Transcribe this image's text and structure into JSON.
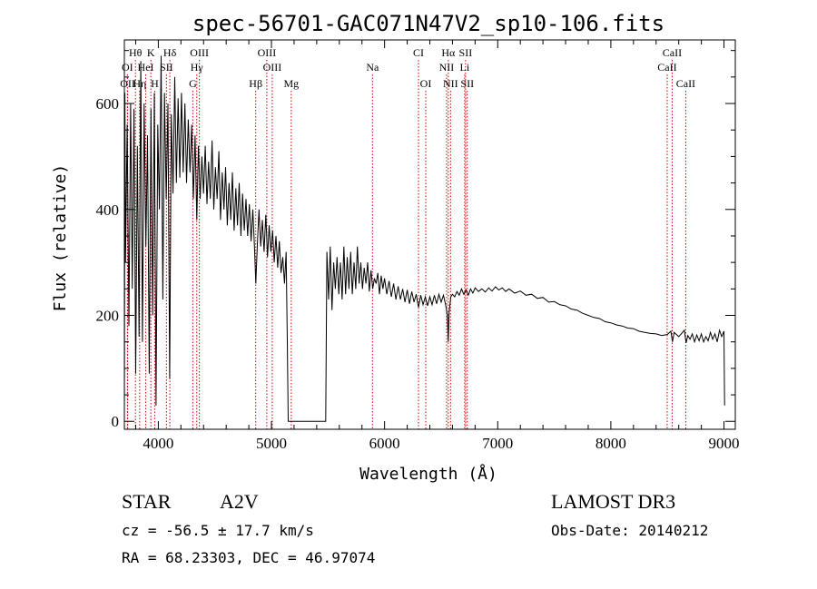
{
  "chart_data": {
    "type": "line",
    "title": "spec-56701-GAC071N47V2_sp10-106.fits",
    "xlabel": "Wavelength (Å)",
    "ylabel": "Flux (relative)",
    "xlim": [
      3700,
      9100
    ],
    "ylim": [
      -15,
      720
    ],
    "x_ticks": [
      4000,
      5000,
      6000,
      7000,
      8000,
      9000
    ],
    "y_ticks": [
      0,
      200,
      400,
      600
    ],
    "grid": false,
    "series": [
      {
        "name": "flux",
        "points": [
          [
            3700,
            0
          ],
          [
            3705,
            620
          ],
          [
            3710,
            300
          ],
          [
            3725,
            560
          ],
          [
            3740,
            180
          ],
          [
            3755,
            600
          ],
          [
            3770,
            250
          ],
          [
            3785,
            590
          ],
          [
            3800,
            90
          ],
          [
            3815,
            520
          ],
          [
            3830,
            160
          ],
          [
            3845,
            680
          ],
          [
            3860,
            150
          ],
          [
            3875,
            600
          ],
          [
            3890,
            330
          ],
          [
            3905,
            540
          ],
          [
            3920,
            90
          ],
          [
            3935,
            590
          ],
          [
            3950,
            200
          ],
          [
            3965,
            620
          ],
          [
            3980,
            30
          ],
          [
            3995,
            560
          ],
          [
            4010,
            400
          ],
          [
            4025,
            690
          ],
          [
            4040,
            230
          ],
          [
            4055,
            620
          ],
          [
            4070,
            420
          ],
          [
            4085,
            600
          ],
          [
            4100,
            80
          ],
          [
            4115,
            580
          ],
          [
            4130,
            430
          ],
          [
            4145,
            650
          ],
          [
            4160,
            450
          ],
          [
            4175,
            610
          ],
          [
            4190,
            460
          ],
          [
            4205,
            620
          ],
          [
            4220,
            470
          ],
          [
            4235,
            600
          ],
          [
            4250,
            450
          ],
          [
            4265,
            570
          ],
          [
            4280,
            470
          ],
          [
            4295,
            560
          ],
          [
            4310,
            420
          ],
          [
            4325,
            540
          ],
          [
            4340,
            380
          ],
          [
            4355,
            520
          ],
          [
            4370,
            420
          ],
          [
            4385,
            500
          ],
          [
            4400,
            430
          ],
          [
            4415,
            520
          ],
          [
            4430,
            410
          ],
          [
            4445,
            490
          ],
          [
            4460,
            420
          ],
          [
            4475,
            530
          ],
          [
            4490,
            400
          ],
          [
            4505,
            480
          ],
          [
            4520,
            420
          ],
          [
            4535,
            510
          ],
          [
            4550,
            380
          ],
          [
            4565,
            470
          ],
          [
            4580,
            400
          ],
          [
            4595,
            480
          ],
          [
            4610,
            370
          ],
          [
            4625,
            450
          ],
          [
            4640,
            380
          ],
          [
            4655,
            470
          ],
          [
            4670,
            360
          ],
          [
            4685,
            440
          ],
          [
            4700,
            370
          ],
          [
            4715,
            450
          ],
          [
            4730,
            350
          ],
          [
            4745,
            430
          ],
          [
            4760,
            360
          ],
          [
            4775,
            420
          ],
          [
            4790,
            350
          ],
          [
            4805,
            410
          ],
          [
            4820,
            340
          ],
          [
            4835,
            400
          ],
          [
            4850,
            330
          ],
          [
            4862,
            260
          ],
          [
            4875,
            330
          ],
          [
            4890,
            400
          ],
          [
            4905,
            330
          ],
          [
            4920,
            380
          ],
          [
            4935,
            320
          ],
          [
            4950,
            390
          ],
          [
            4965,
            310
          ],
          [
            4980,
            370
          ],
          [
            4995,
            320
          ],
          [
            5010,
            360
          ],
          [
            5025,
            300
          ],
          [
            5040,
            350
          ],
          [
            5055,
            290
          ],
          [
            5070,
            340
          ],
          [
            5085,
            280
          ],
          [
            5100,
            310
          ],
          [
            5115,
            260
          ],
          [
            5130,
            320
          ],
          [
            5140,
            150
          ],
          [
            5148,
            0
          ],
          [
            5480,
            0
          ],
          [
            5490,
            320
          ],
          [
            5505,
            230
          ],
          [
            5520,
            330
          ],
          [
            5535,
            210
          ],
          [
            5550,
            300
          ],
          [
            5565,
            250
          ],
          [
            5580,
            310
          ],
          [
            5595,
            240
          ],
          [
            5610,
            300
          ],
          [
            5625,
            230
          ],
          [
            5640,
            330
          ],
          [
            5655,
            240
          ],
          [
            5670,
            310
          ],
          [
            5685,
            250
          ],
          [
            5700,
            320
          ],
          [
            5715,
            240
          ],
          [
            5730,
            300
          ],
          [
            5745,
            250
          ],
          [
            5760,
            330
          ],
          [
            5775,
            260
          ],
          [
            5790,
            300
          ],
          [
            5805,
            250
          ],
          [
            5820,
            290
          ],
          [
            5835,
            260
          ],
          [
            5850,
            300
          ],
          [
            5865,
            245
          ],
          [
            5880,
            285
          ],
          [
            5895,
            250
          ],
          [
            5910,
            270
          ],
          [
            5925,
            260
          ],
          [
            5940,
            280
          ],
          [
            5955,
            240
          ],
          [
            5970,
            275
          ],
          [
            5985,
            250
          ],
          [
            6000,
            270
          ],
          [
            6020,
            240
          ],
          [
            6040,
            265
          ],
          [
            6060,
            235
          ],
          [
            6080,
            260
          ],
          [
            6100,
            230
          ],
          [
            6120,
            255
          ],
          [
            6140,
            230
          ],
          [
            6160,
            250
          ],
          [
            6180,
            225
          ],
          [
            6200,
            248
          ],
          [
            6220,
            222
          ],
          [
            6240,
            245
          ],
          [
            6260,
            225
          ],
          [
            6280,
            240
          ],
          [
            6300,
            215
          ],
          [
            6320,
            238
          ],
          [
            6340,
            220
          ],
          [
            6360,
            235
          ],
          [
            6380,
            218
          ],
          [
            6400,
            235
          ],
          [
            6420,
            220
          ],
          [
            6440,
            238
          ],
          [
            6460,
            222
          ],
          [
            6480,
            240
          ],
          [
            6500,
            225
          ],
          [
            6520,
            238
          ],
          [
            6540,
            220
          ],
          [
            6555,
            200
          ],
          [
            6563,
            150
          ],
          [
            6570,
            205
          ],
          [
            6585,
            235
          ],
          [
            6600,
            240
          ],
          [
            6620,
            235
          ],
          [
            6640,
            245
          ],
          [
            6660,
            238
          ],
          [
            6680,
            250
          ],
          [
            6700,
            240
          ],
          [
            6720,
            248
          ],
          [
            6740,
            238
          ],
          [
            6760,
            250
          ],
          [
            6780,
            242
          ],
          [
            6800,
            252
          ],
          [
            6830,
            245
          ],
          [
            6860,
            250
          ],
          [
            6890,
            244
          ],
          [
            6920,
            252
          ],
          [
            6950,
            246
          ],
          [
            6980,
            254
          ],
          [
            7010,
            248
          ],
          [
            7040,
            252
          ],
          [
            7070,
            245
          ],
          [
            7100,
            250
          ],
          [
            7150,
            242
          ],
          [
            7200,
            246
          ],
          [
            7250,
            238
          ],
          [
            7300,
            240
          ],
          [
            7350,
            232
          ],
          [
            7400,
            234
          ],
          [
            7450,
            225
          ],
          [
            7500,
            226
          ],
          [
            7550,
            220
          ],
          [
            7600,
            218
          ],
          [
            7650,
            212
          ],
          [
            7700,
            210
          ],
          [
            7750,
            204
          ],
          [
            7800,
            200
          ],
          [
            7850,
            196
          ],
          [
            7900,
            194
          ],
          [
            7950,
            188
          ],
          [
            8000,
            186
          ],
          [
            8050,
            182
          ],
          [
            8100,
            180
          ],
          [
            8150,
            176
          ],
          [
            8200,
            175
          ],
          [
            8250,
            170
          ],
          [
            8300,
            168
          ],
          [
            8350,
            166
          ],
          [
            8400,
            165
          ],
          [
            8450,
            162
          ],
          [
            8500,
            164
          ],
          [
            8530,
            170
          ],
          [
            8545,
            150
          ],
          [
            8560,
            168
          ],
          [
            8600,
            160
          ],
          [
            8650,
            172
          ],
          [
            8665,
            148
          ],
          [
            8680,
            162
          ],
          [
            8700,
            155
          ],
          [
            8720,
            165
          ],
          [
            8740,
            150
          ],
          [
            8760,
            163
          ],
          [
            8780,
            152
          ],
          [
            8800,
            165
          ],
          [
            8820,
            150
          ],
          [
            8840,
            160
          ],
          [
            8860,
            152
          ],
          [
            8880,
            168
          ],
          [
            8900,
            155
          ],
          [
            8920,
            165
          ],
          [
            8940,
            150
          ],
          [
            8960,
            172
          ],
          [
            8980,
            160
          ],
          [
            9000,
            170
          ],
          [
            9005,
            30
          ]
        ]
      }
    ],
    "line_markers": [
      {
        "label": "Hθ",
        "x": 3798,
        "row": 1
      },
      {
        "label": "K",
        "x": 3934,
        "row": 1
      },
      {
        "label": "Hδ",
        "x": 4102,
        "row": 1
      },
      {
        "label": "OIII",
        "x": 4363,
        "row": 1
      },
      {
        "label": "OIII",
        "x": 4959,
        "row": 1
      },
      {
        "label": "CI",
        "x": 6300,
        "row": 1
      },
      {
        "label": "Hα",
        "x": 6563,
        "row": 1
      },
      {
        "label": "SII",
        "x": 6716,
        "row": 1
      },
      {
        "label": "CaII",
        "x": 8542,
        "row": 1
      },
      {
        "label": "OI",
        "x": 3727,
        "row": 2
      },
      {
        "label": "HeI",
        "x": 3889,
        "row": 2
      },
      {
        "label": "SII",
        "x": 4072,
        "row": 2
      },
      {
        "label": "Hγ",
        "x": 4340,
        "row": 2
      },
      {
        "label": "OIII",
        "x": 5007,
        "row": 2
      },
      {
        "label": "Na",
        "x": 5893,
        "row": 2
      },
      {
        "label": "NII",
        "x": 6548,
        "row": 2
      },
      {
        "label": "Li",
        "x": 6708,
        "row": 2
      },
      {
        "label": "CaII",
        "x": 8498,
        "row": 2
      },
      {
        "label": "OII",
        "x": 3729,
        "row": 3
      },
      {
        "label": "Hη",
        "x": 3835,
        "row": 3
      },
      {
        "label": "H",
        "x": 3968,
        "row": 3
      },
      {
        "label": "G",
        "x": 4305,
        "row": 3
      },
      {
        "label": "Hβ",
        "x": 4861,
        "row": 3
      },
      {
        "label": "Mg",
        "x": 5175,
        "row": 3
      },
      {
        "label": "OI",
        "x": 6364,
        "row": 3
      },
      {
        "label": "NII",
        "x": 6583,
        "row": 3
      },
      {
        "label": "SII",
        "x": 6731,
        "row": 3
      },
      {
        "label": "CaII",
        "x": 8662,
        "row": 3
      }
    ]
  },
  "info": {
    "class": "STAR",
    "subclass": "A2V",
    "survey": "LAMOST DR3",
    "cz": "cz = -56.5 ± 17.7 km/s",
    "obs_date": "Obs-Date: 20140212",
    "coords": "RA =  68.23303, DEC =  46.97074"
  },
  "colors": {
    "line": "#000000",
    "marker": "#cc0000",
    "axis": "#000000"
  }
}
